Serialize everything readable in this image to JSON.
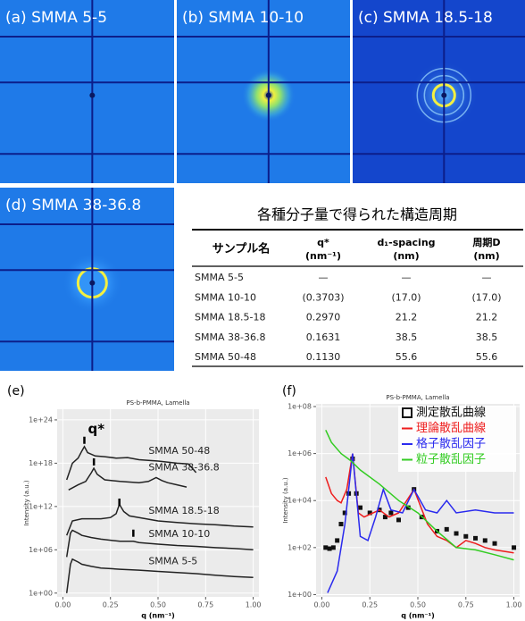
{
  "panels": [
    {
      "label": "(a) SMMA 5-5"
    },
    {
      "label": "(b) SMMA 10-10"
    },
    {
      "label": "(c) SMMA 18.5-18"
    },
    {
      "label": "(d) SMMA 38-36.8"
    }
  ],
  "table": {
    "title": "各種分子量で得られた構造周期",
    "header": [
      [
        "サンプル名"
      ],
      [
        "q*",
        "(nm⁻¹)"
      ],
      [
        "d₁-spacing",
        "(nm)"
      ],
      [
        "周期D",
        "(nm)"
      ]
    ],
    "rows": [
      [
        "SMMA 5-5",
        "—",
        "—",
        "—"
      ],
      [
        "SMMA 10-10",
        "(0.3703)",
        "(17.0)",
        "(17.0)"
      ],
      [
        "SMMA 18.5-18",
        "0.2970",
        "21.2",
        "21.2"
      ],
      [
        "SMMA 38-36.8",
        "0.1631",
        "38.5",
        "38.5"
      ],
      [
        "SMMA 50-48",
        "0.1130",
        "55.6",
        "55.6"
      ]
    ]
  },
  "chart_data": [
    {
      "type": "line",
      "panel_label": "(e)",
      "title": "PS-b-PMMA, Lamella",
      "xlabel": "q (nm⁻¹)",
      "ylabel": "Intensity (a.u.)",
      "log_y": true,
      "grid": true,
      "xlim": [
        -0.03,
        1.03
      ],
      "ylim": [
        0.3,
        3e+25
      ],
      "xticks": [
        {
          "value": 0,
          "label": "0.00"
        },
        {
          "value": 0.25,
          "label": "0.25"
        },
        {
          "value": 0.5,
          "label": "0.50"
        },
        {
          "value": 0.75,
          "label": "0.75"
        },
        {
          "value": 1,
          "label": "1.00"
        }
      ],
      "yticks": [
        {
          "value": 1,
          "label": "1e+00"
        },
        {
          "value": 1000000.0,
          "label": "1e+06"
        },
        {
          "value": 1000000000000.0,
          "label": "1e+12"
        },
        {
          "value": 1e+18,
          "label": "1e+18"
        },
        {
          "value": 1e+24,
          "label": "1e+24"
        }
      ],
      "series": [
        {
          "name": "SMMA 50-48",
          "color": "#222222",
          "x": [
            0.02,
            0.05,
            0.08,
            0.1,
            0.113,
            0.13,
            0.17,
            0.22,
            0.28,
            0.34,
            0.4,
            0.5,
            0.6,
            0.66,
            0.7
          ],
          "values": [
            5000000000000000.0,
            1e+18,
            5e+18,
            5e+19,
            2e+20,
            3e+19,
            1e+19,
            8e+18,
            5e+18,
            6e+18,
            3e+18,
            2e+18,
            1e+18,
            8e+17,
            5e+16
          ]
        },
        {
          "name": "SMMA 38-36.8",
          "color": "#222222",
          "x": [
            0.03,
            0.08,
            0.12,
            0.15,
            0.163,
            0.18,
            0.22,
            0.3,
            0.4,
            0.45,
            0.49,
            0.52,
            0.55,
            0.6,
            0.65
          ],
          "values": [
            200000000000000.0,
            1000000000000000.0,
            3000000000000000.0,
            5e+16,
            2e+17,
            3e+16,
            5000000000000000.0,
            3000000000000000.0,
            2000000000000000.0,
            3000000000000000.0,
            1e+16,
            4000000000000000.0,
            2000000000000000.0,
            1000000000000000.0,
            500000000000000.0
          ]
        },
        {
          "name": "SMMA 18.5-18",
          "color": "#222222",
          "x": [
            0.02,
            0.05,
            0.1,
            0.15,
            0.2,
            0.25,
            0.28,
            0.297,
            0.32,
            0.35,
            0.4,
            0.5,
            0.6,
            0.7,
            0.8,
            0.9,
            1.0
          ],
          "values": [
            100000000.0,
            10000000000.0,
            20000000000.0,
            20000000000.0,
            20000000000.0,
            30000000000.0,
            100000000000.0,
            2000000000000.0,
            200000000000.0,
            50000000000.0,
            30000000000.0,
            10000000000.0,
            6000000000.0,
            4000000000.0,
            3000000000.0,
            2000000000.0,
            1500000000.0
          ]
        },
        {
          "name": "SMMA 10-10",
          "color": "#222222",
          "x": [
            0.02,
            0.04,
            0.05,
            0.08,
            0.1,
            0.15,
            0.2,
            0.3,
            0.37,
            0.4,
            0.5,
            0.6,
            0.7,
            0.8,
            0.9,
            1.0
          ],
          "values": [
            100000.0,
            200000000.0,
            500000000.0,
            200000000.0,
            100000000.0,
            50000000.0,
            30000000.0,
            15000000.0,
            15000000.0,
            10000000.0,
            6000000.0,
            4000000.0,
            3000000.0,
            2000000.0,
            1500000.0,
            1000000.0
          ]
        },
        {
          "name": "SMMA 5-5",
          "color": "#222222",
          "x": [
            0.02,
            0.04,
            0.05,
            0.08,
            0.1,
            0.15,
            0.2,
            0.3,
            0.4,
            0.5,
            0.6,
            0.7,
            0.8,
            0.9,
            1.0
          ],
          "values": [
            1,
            10000.0,
            50000.0,
            20000.0,
            10000.0,
            5000.0,
            3000.0,
            2000.0,
            1500.0,
            1000.0,
            700,
            500,
            300,
            200,
            150
          ]
        }
      ],
      "annotation": "q*",
      "peak_markers": {
        "x": [
          0.113,
          0.1631,
          0.297,
          0.3703
        ],
        "y": [
          1.5e+21,
          1.5e+18,
          4000000000000.0,
          200000000.0
        ]
      }
    },
    {
      "type": "line",
      "panel_label": "(f)",
      "title": "PS-b-PMMA, Lamella",
      "xlabel": "q (nm⁻¹)",
      "ylabel": "Intensity (a.u.)",
      "log_y": true,
      "grid": true,
      "legend": "top-right",
      "xlim": [
        -0.03,
        1.03
      ],
      "ylim": [
        0.8,
        130000000.0
      ],
      "xticks": [
        {
          "value": 0,
          "label": "0.00"
        },
        {
          "value": 0.25,
          "label": "0.25"
        },
        {
          "value": 0.5,
          "label": "0.50"
        },
        {
          "value": 0.75,
          "label": "0.75"
        },
        {
          "value": 1,
          "label": "1.00"
        }
      ],
      "yticks": [
        {
          "value": 1,
          "label": "1e+00"
        },
        {
          "value": 100,
          "label": "1e+02"
        },
        {
          "value": 10000,
          "label": "1e+04"
        },
        {
          "value": 1000000,
          "label": "1e+06"
        },
        {
          "value": 100000000,
          "label": "1e+08"
        }
      ],
      "series": [
        {
          "name": "測定散乱曲線",
          "color": "#111111",
          "marker": "square",
          "x": [
            0.02,
            0.04,
            0.06,
            0.08,
            0.1,
            0.12,
            0.14,
            0.16,
            0.18,
            0.2,
            0.25,
            0.3,
            0.33,
            0.36,
            0.4,
            0.45,
            0.48,
            0.52,
            0.6,
            0.65,
            0.7,
            0.75,
            0.8,
            0.85,
            0.9,
            1.0
          ],
          "values": [
            100,
            90,
            100,
            200,
            1000,
            3000,
            20000,
            600000,
            20000,
            5000,
            3000,
            4000,
            2000,
            3000,
            1500,
            5000,
            30000,
            2000,
            500,
            600,
            400,
            300,
            250,
            200,
            150,
            100
          ]
        },
        {
          "name": "理論散乱曲線",
          "color": "#ee1c1c",
          "x": [
            0.02,
            0.05,
            0.08,
            0.1,
            0.13,
            0.16,
            0.19,
            0.22,
            0.3,
            0.35,
            0.4,
            0.48,
            0.55,
            0.6,
            0.65,
            0.7,
            0.75,
            0.8,
            0.85,
            0.9,
            1.0
          ],
          "values": [
            100000,
            20000,
            10000,
            8000,
            30000,
            1000000,
            3000,
            2000,
            4000,
            2000,
            3000,
            30000,
            1000,
            300,
            200,
            100,
            200,
            150,
            100,
            80,
            60
          ]
        },
        {
          "name": "格子散乱因子",
          "color": "#2a2aee",
          "x": [
            0.03,
            0.08,
            0.12,
            0.16,
            0.2,
            0.24,
            0.28,
            0.32,
            0.36,
            0.42,
            0.48,
            0.54,
            0.6,
            0.65,
            0.7,
            0.8,
            0.9,
            1.0
          ],
          "values": [
            1.2,
            10,
            1000,
            1000000,
            300,
            200,
            2000,
            30000,
            4000,
            3000,
            30000,
            4000,
            3000,
            10000,
            3000,
            4000,
            3000,
            3000
          ]
        },
        {
          "name": "粒子散乱因子",
          "color": "#33cc22",
          "x": [
            0.02,
            0.05,
            0.1,
            0.15,
            0.2,
            0.3,
            0.4,
            0.5,
            0.6,
            0.7,
            0.8,
            0.9,
            1.0
          ],
          "values": [
            10000000,
            3000000,
            1000000,
            500000,
            200000,
            50000,
            10000,
            3000,
            500,
            100,
            80,
            50,
            30
          ]
        }
      ]
    }
  ]
}
